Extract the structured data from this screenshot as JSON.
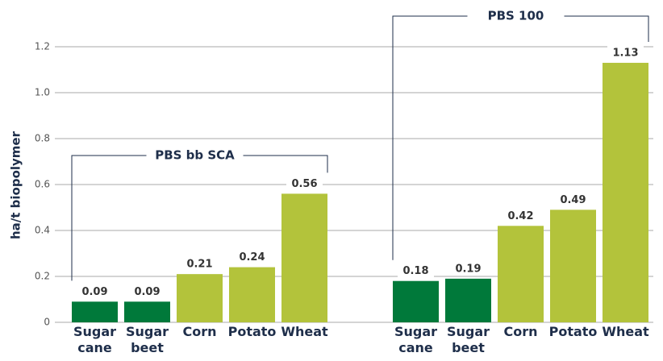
{
  "chart_data": {
    "type": "bar",
    "y_label": "ha/t biopolymer",
    "categories": [
      "Sugar cane",
      "Sugar beet",
      "Corn",
      "Potato",
      "Wheat"
    ],
    "colors": [
      "#00793a",
      "#00793a",
      "#b3c33b",
      "#b3c33b",
      "#b3c33b"
    ],
    "series": [
      {
        "name": "PBS bb SCA",
        "values": [
          0.09,
          0.09,
          0.21,
          0.24,
          0.56
        ]
      },
      {
        "name": "PBS 100",
        "values": [
          0.18,
          0.19,
          0.42,
          0.49,
          1.13
        ]
      }
    ],
    "ylim": [
      0,
      1.2
    ],
    "yticks": [
      0,
      0.2,
      0.4,
      0.6,
      0.8,
      {
        "value": 1,
        "label": "1.0"
      },
      1.2
    ],
    "grid": true
  }
}
